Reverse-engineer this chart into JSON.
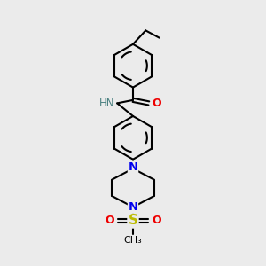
{
  "background_color": "#ebebeb",
  "atom_colors": {
    "C": "#000000",
    "H": "#4a8080",
    "N": "#0000ee",
    "O": "#ee0000",
    "S": "#bbbb00"
  },
  "bond_color": "#000000",
  "bond_width": 1.5,
  "figsize": [
    3.0,
    3.0
  ],
  "dpi": 100,
  "xlim": [
    0,
    10
  ],
  "ylim": [
    0,
    10
  ]
}
